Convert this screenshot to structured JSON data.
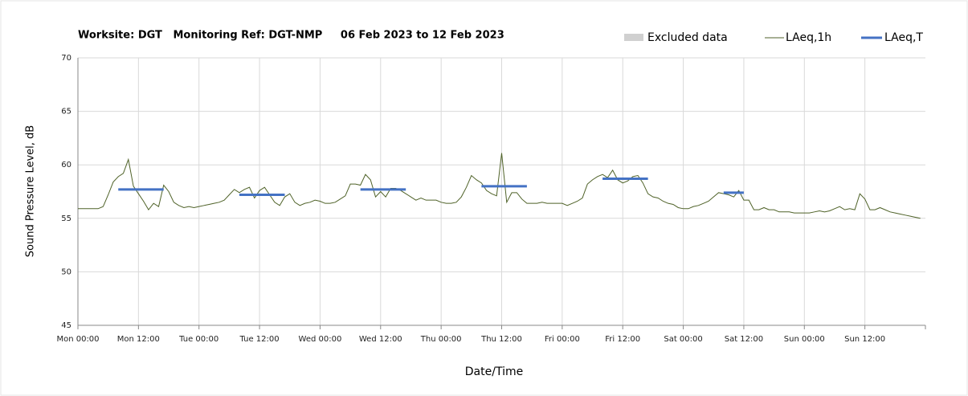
{
  "chart_data": {
    "type": "line",
    "title": "Worksite: DGT   Monitoring Ref: DGT-NMP     06 Feb 2023 to 12 Feb 2023",
    "x_label": "Date/Time",
    "y_label": "Sound Pressure Level, dB",
    "x": [
      "Mon 00:00",
      "Mon 01:00",
      "Mon 02:00",
      "Mon 03:00",
      "Mon 04:00",
      "Mon 05:00",
      "Mon 06:00",
      "Mon 07:00",
      "Mon 08:00",
      "Mon 09:00",
      "Mon 10:00",
      "Mon 11:00",
      "Mon 12:00",
      "Mon 13:00",
      "Mon 14:00",
      "Mon 15:00",
      "Mon 16:00",
      "Mon 17:00",
      "Mon 18:00",
      "Mon 19:00",
      "Mon 20:00",
      "Mon 21:00",
      "Mon 22:00",
      "Mon 23:00",
      "Tue 00:00",
      "Tue 01:00",
      "Tue 02:00",
      "Tue 03:00",
      "Tue 04:00",
      "Tue 05:00",
      "Tue 06:00",
      "Tue 07:00",
      "Tue 08:00",
      "Tue 09:00",
      "Tue 10:00",
      "Tue 11:00",
      "Tue 12:00",
      "Tue 13:00",
      "Tue 14:00",
      "Tue 15:00",
      "Tue 16:00",
      "Tue 17:00",
      "Tue 18:00",
      "Tue 19:00",
      "Tue 20:00",
      "Tue 21:00",
      "Tue 22:00",
      "Tue 23:00",
      "Wed 00:00",
      "Wed 01:00",
      "Wed 02:00",
      "Wed 03:00",
      "Wed 04:00",
      "Wed 05:00",
      "Wed 06:00",
      "Wed 07:00",
      "Wed 08:00",
      "Wed 09:00",
      "Wed 10:00",
      "Wed 11:00",
      "Wed 12:00",
      "Wed 13:00",
      "Wed 14:00",
      "Wed 15:00",
      "Wed 16:00",
      "Wed 17:00",
      "Wed 18:00",
      "Wed 19:00",
      "Wed 20:00",
      "Wed 21:00",
      "Wed 22:00",
      "Wed 23:00",
      "Thu 00:00",
      "Thu 01:00",
      "Thu 02:00",
      "Thu 03:00",
      "Thu 04:00",
      "Thu 05:00",
      "Thu 06:00",
      "Thu 07:00",
      "Thu 08:00",
      "Thu 09:00",
      "Thu 10:00",
      "Thu 11:00",
      "Thu 12:00",
      "Thu 13:00",
      "Thu 14:00",
      "Thu 15:00",
      "Thu 16:00",
      "Thu 17:00",
      "Thu 18:00",
      "Thu 19:00",
      "Thu 20:00",
      "Thu 21:00",
      "Thu 22:00",
      "Thu 23:00",
      "Fri 00:00",
      "Fri 01:00",
      "Fri 02:00",
      "Fri 03:00",
      "Fri 04:00",
      "Fri 05:00",
      "Fri 06:00",
      "Fri 07:00",
      "Fri 08:00",
      "Fri 09:00",
      "Fri 10:00",
      "Fri 11:00",
      "Fri 12:00",
      "Fri 13:00",
      "Fri 14:00",
      "Fri 15:00",
      "Fri 16:00",
      "Fri 17:00",
      "Fri 18:00",
      "Fri 19:00",
      "Fri 20:00",
      "Fri 21:00",
      "Fri 22:00",
      "Fri 23:00",
      "Sat 00:00",
      "Sat 01:00",
      "Sat 02:00",
      "Sat 03:00",
      "Sat 04:00",
      "Sat 05:00",
      "Sat 06:00",
      "Sat 07:00",
      "Sat 08:00",
      "Sat 09:00",
      "Sat 10:00",
      "Sat 11:00",
      "Sat 12:00",
      "Sat 13:00",
      "Sat 14:00",
      "Sat 15:00",
      "Sat 16:00",
      "Sat 17:00",
      "Sat 18:00",
      "Sat 19:00",
      "Sat 20:00",
      "Sat 21:00",
      "Sat 22:00",
      "Sat 23:00",
      "Sun 00:00",
      "Sun 01:00",
      "Sun 02:00",
      "Sun 03:00",
      "Sun 04:00",
      "Sun 05:00",
      "Sun 06:00",
      "Sun 07:00",
      "Sun 08:00",
      "Sun 09:00",
      "Sun 10:00",
      "Sun 11:00",
      "Sun 12:00",
      "Sun 13:00",
      "Sun 14:00",
      "Sun 15:00",
      "Sun 16:00",
      "Sun 17:00",
      "Sun 18:00",
      "Sun 19:00",
      "Sun 20:00",
      "Sun 21:00",
      "Sun 22:00",
      "Sun 23:00"
    ],
    "series": [
      {
        "name": "LAeq,1h",
        "color": "#4f6228",
        "values": [
          55.9,
          55.9,
          55.9,
          55.9,
          55.9,
          56.1,
          57.2,
          58.4,
          58.9,
          59.2,
          60.5,
          58.0,
          57.3,
          56.6,
          55.8,
          56.4,
          56.1,
          58.1,
          57.5,
          56.5,
          56.2,
          56.0,
          56.1,
          56.0,
          56.1,
          56.2,
          56.3,
          56.4,
          56.5,
          56.7,
          57.2,
          57.7,
          57.4,
          57.7,
          57.9,
          56.9,
          57.6,
          57.9,
          57.2,
          56.5,
          56.2,
          57.0,
          57.3,
          56.5,
          56.2,
          56.4,
          56.5,
          56.7,
          56.6,
          56.4,
          56.4,
          56.5,
          56.8,
          57.1,
          58.2,
          58.2,
          58.1,
          59.1,
          58.6,
          57.0,
          57.5,
          57.0,
          57.8,
          57.8,
          57.6,
          57.3,
          57.0,
          56.7,
          56.9,
          56.7,
          56.7,
          56.7,
          56.5,
          56.4,
          56.4,
          56.5,
          57.0,
          57.9,
          59.0,
          58.6,
          58.3,
          57.6,
          57.3,
          57.1,
          61.1,
          56.5,
          57.4,
          57.4,
          56.8,
          56.4,
          56.4,
          56.4,
          56.5,
          56.4,
          56.4,
          56.4,
          56.4,
          56.2,
          56.4,
          56.6,
          56.9,
          58.2,
          58.6,
          58.9,
          59.1,
          58.8,
          59.5,
          58.6,
          58.3,
          58.5,
          58.9,
          59.0,
          58.3,
          57.3,
          57.0,
          56.9,
          56.6,
          56.4,
          56.3,
          56.0,
          55.9,
          55.9,
          56.1,
          56.2,
          56.4,
          56.6,
          57.0,
          57.4,
          57.3,
          57.2,
          57.0,
          57.6,
          56.7,
          56.7,
          55.8,
          55.8,
          56.0,
          55.8,
          55.8,
          55.6,
          55.6,
          55.6,
          55.5,
          55.5,
          55.5,
          55.5,
          55.6,
          55.7,
          55.6,
          55.7,
          55.9,
          56.1,
          55.8,
          55.9,
          55.8,
          57.3,
          56.8,
          55.8,
          55.8,
          56.0,
          55.8,
          55.6,
          55.5,
          55.4,
          55.3,
          55.2,
          55.1,
          55.0
        ]
      }
    ],
    "periods": {
      "name": "LAeq,T",
      "color": "#4472c4",
      "x_start": [
        "Mon 08:00",
        "Tue 08:00",
        "Wed 08:00",
        "Thu 08:00",
        "Fri 08:00",
        "Sat 08:00"
      ],
      "x_end": [
        "Mon 17:00",
        "Tue 17:00",
        "Wed 17:00",
        "Thu 17:00",
        "Fri 17:00",
        "Sat 12:00"
      ],
      "values": [
        57.7,
        57.2,
        57.7,
        58.0,
        58.7,
        57.4
      ]
    },
    "legend_extra": [
      {
        "name": "Excluded data",
        "color": "#d0d0d0"
      }
    ],
    "ylim": [
      45,
      70
    ],
    "yticks": [
      45,
      50,
      55,
      60,
      65,
      70
    ],
    "xticks": [
      "Mon 00:00",
      "Mon 12:00",
      "Tue 00:00",
      "Tue 12:00",
      "Wed 00:00",
      "Wed 12:00",
      "Thu 00:00",
      "Thu 12:00",
      "Fri 00:00",
      "Fri 12:00",
      "Sat 00:00",
      "Sat 12:00",
      "Sun 00:00",
      "Sun 12:00"
    ],
    "grid": true
  }
}
